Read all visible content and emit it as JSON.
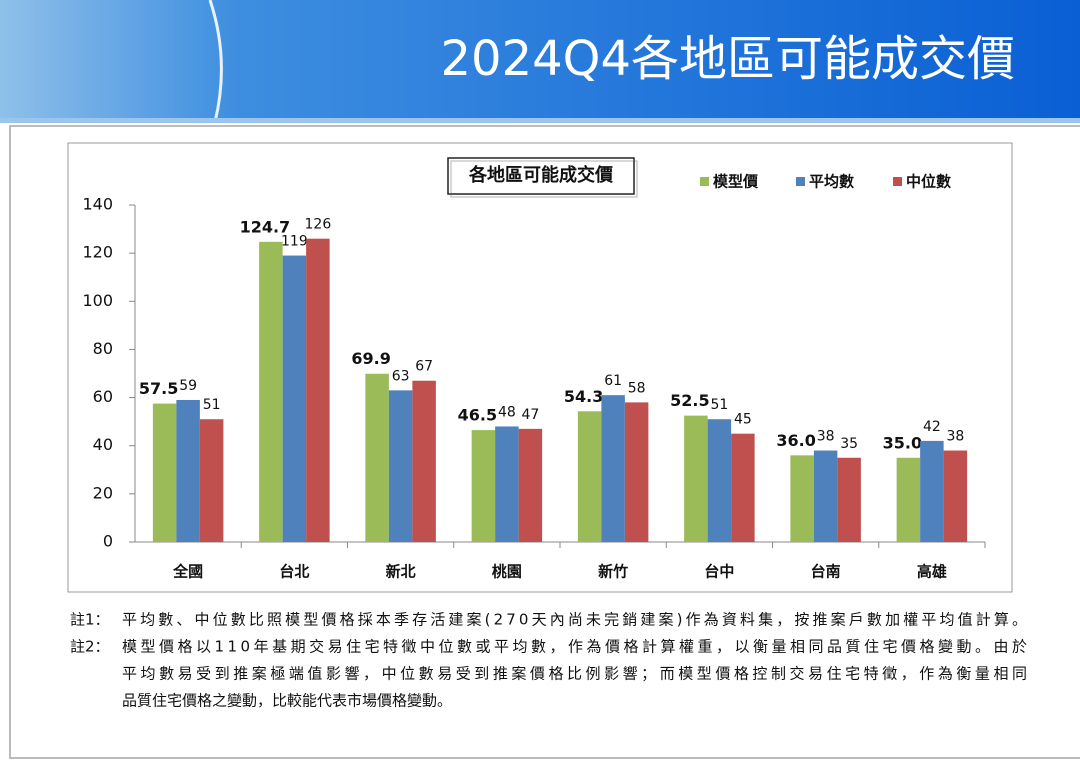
{
  "header": {
    "title": "2024Q4各地區可能成交價"
  },
  "chart_data": {
    "type": "bar",
    "title": "各地區可能成交價",
    "categories": [
      "全國",
      "台北",
      "新北",
      "桃園",
      "新竹",
      "台中",
      "台南",
      "高雄"
    ],
    "series": [
      {
        "name": "模型價",
        "color": "#9bbb59",
        "values": [
          57.5,
          124.7,
          69.9,
          46.5,
          54.3,
          52.5,
          36.0,
          35.0
        ],
        "value_labels": [
          "57.5",
          "124.7",
          "69.9",
          "46.5",
          "54.3",
          "52.5",
          "36.0",
          "35.0"
        ]
      },
      {
        "name": "平均數",
        "color": "#4f81bd",
        "values": [
          59,
          119,
          63,
          48,
          61,
          51,
          38,
          42
        ]
      },
      {
        "name": "中位數",
        "color": "#c0504d",
        "values": [
          51,
          126,
          67,
          47,
          58,
          45,
          35,
          38
        ]
      }
    ],
    "ylim": [
      0,
      140
    ],
    "yticks": [
      0,
      20,
      40,
      60,
      80,
      100,
      120,
      140
    ],
    "grid": false,
    "legend": "top-right"
  },
  "notes": [
    {
      "label": "註1：",
      "lines": [
        "平均數、中位數比照模型價格採本季存活建案(270天內尚未完銷建案)作為資料集，按推案戶數加權平均值計算。"
      ]
    },
    {
      "label": "註2：",
      "lines": [
        "模型價格以110年基期交易住宅特徵中位數或平均數，作為價格計算權重，以衡量相同品質住宅價格變動。由於",
        "平均數易受到推案極端值影響，中位數易受到推案價格比例影響；而模型價格控制交易住宅特徵，作為衡量相同",
        "品質住宅價格之變動，比較能代表市場價格變動。"
      ]
    }
  ]
}
